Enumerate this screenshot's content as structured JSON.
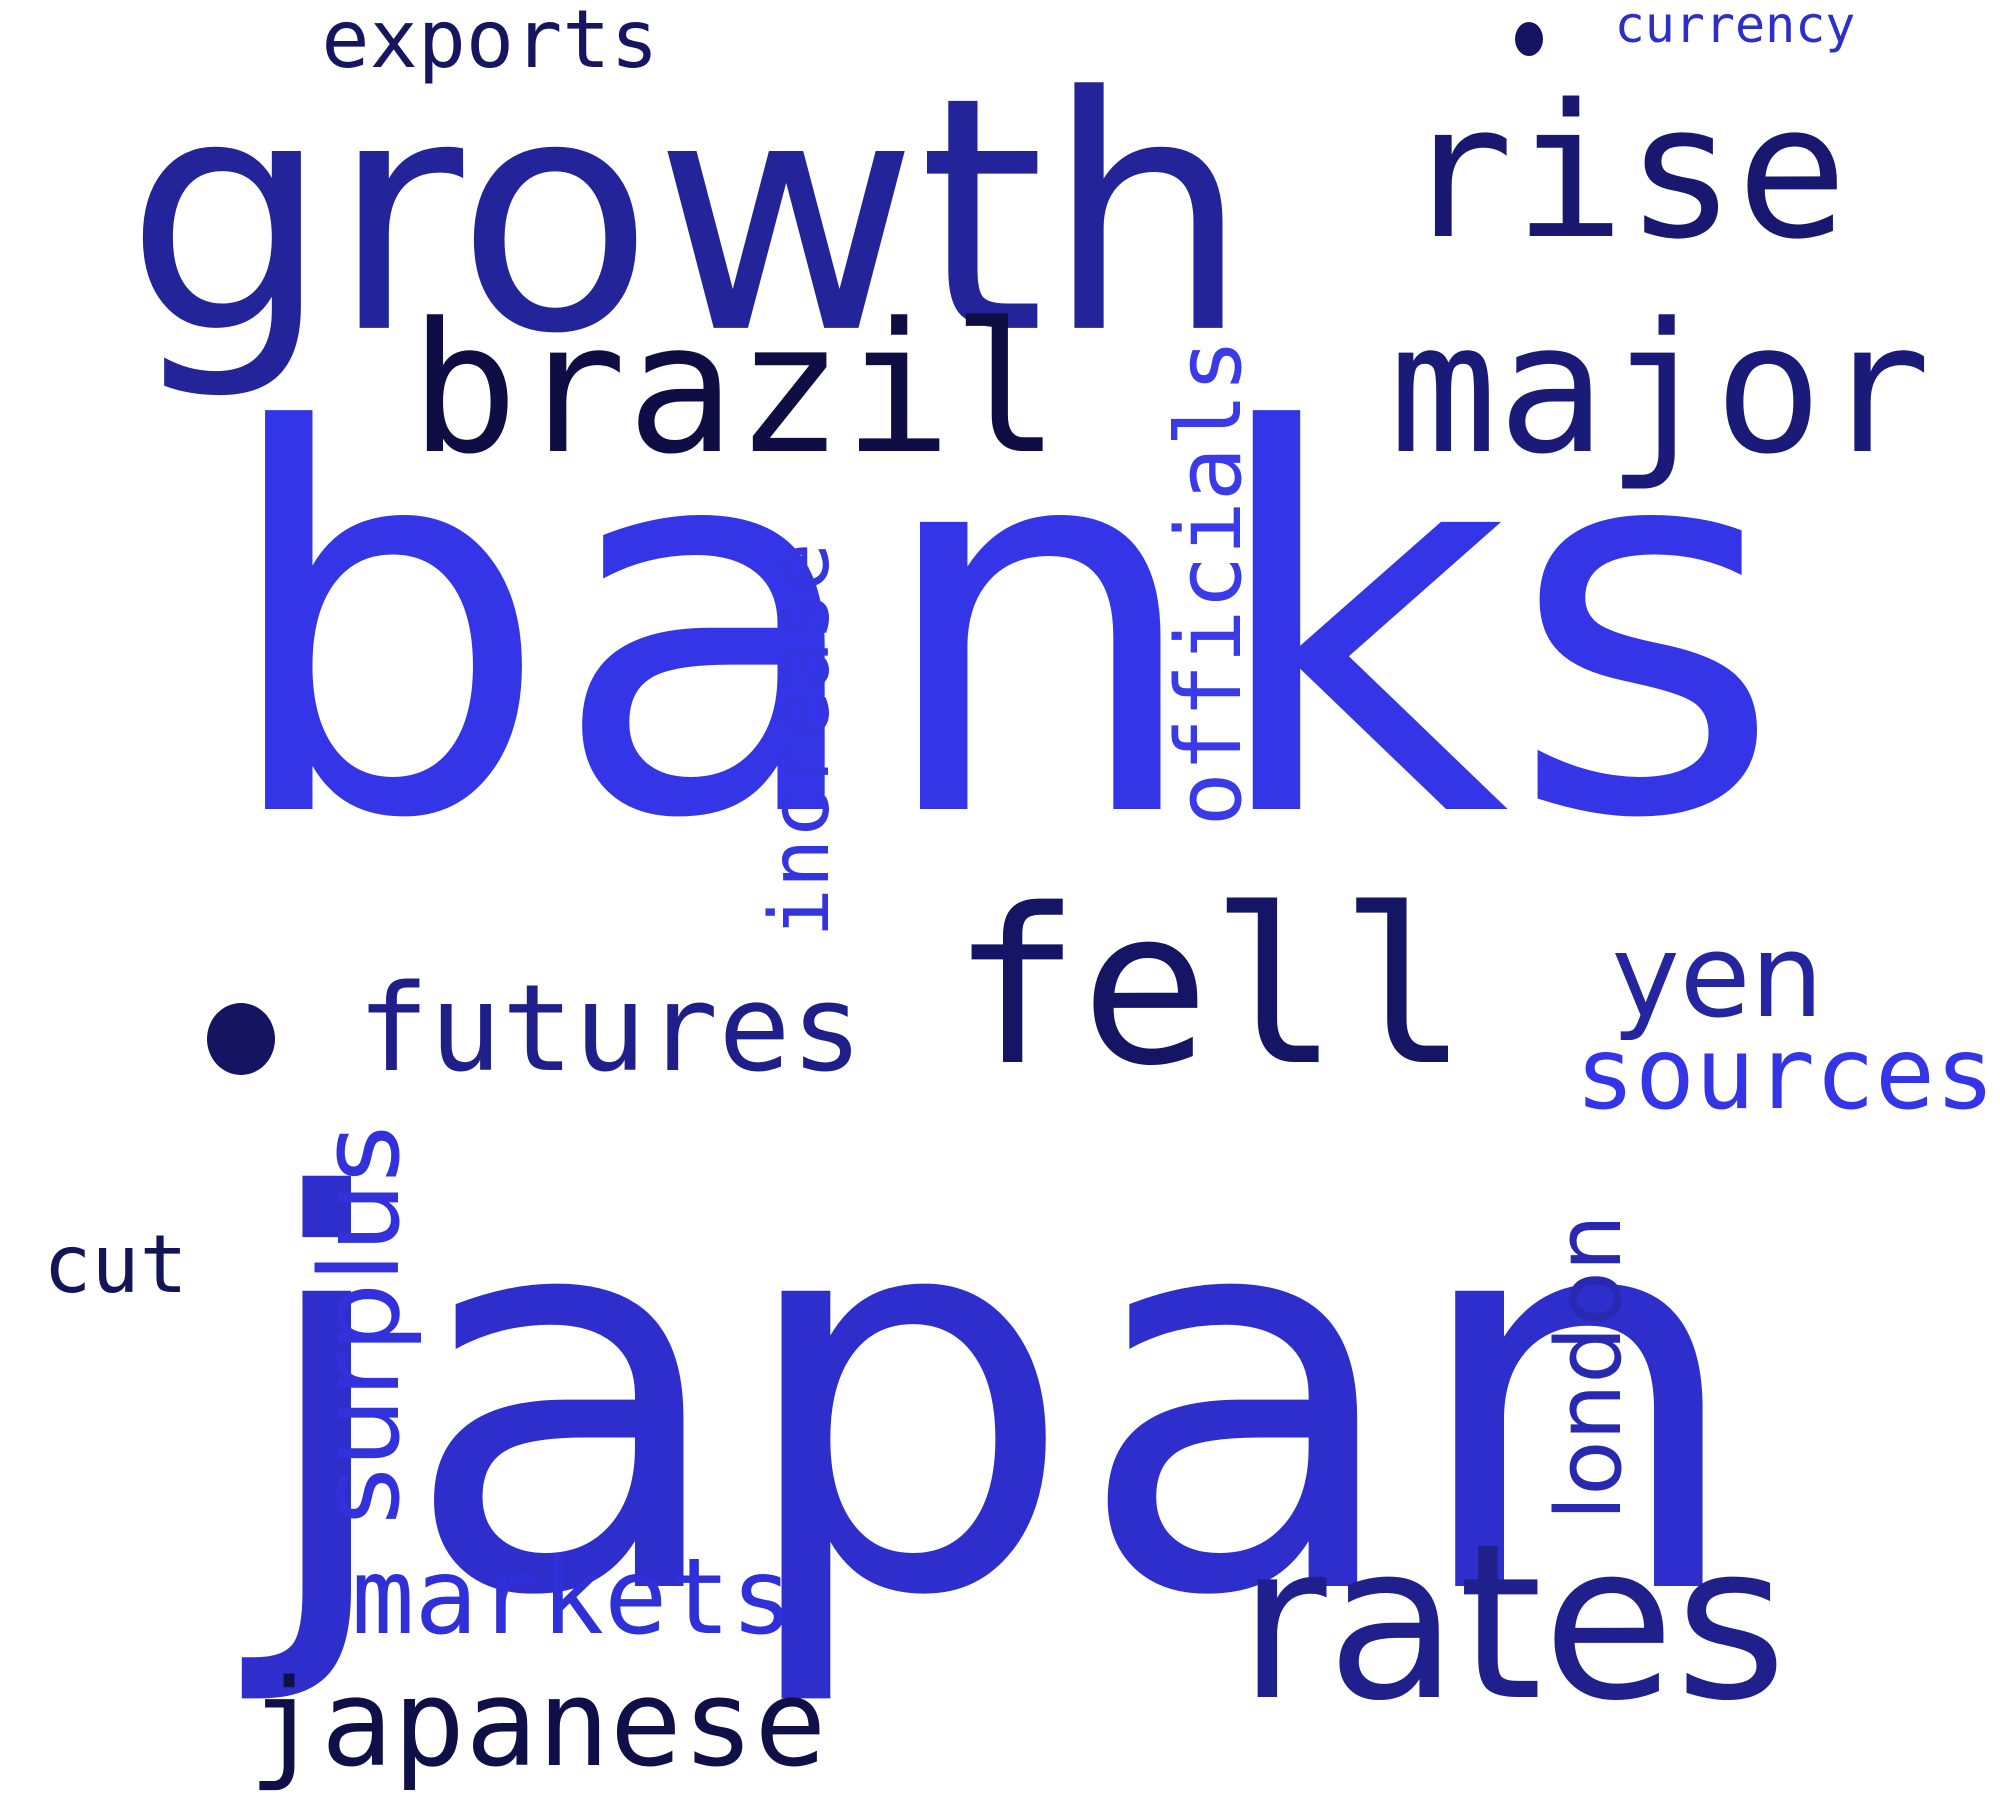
{
  "colors": {
    "background": "#ffffff",
    "bright_blue": "#3535e8",
    "royal_blue": "#2e2ecc",
    "indigo": "#23239a",
    "dark_navy": "#141460",
    "midnight": "#0e0e45"
  },
  "words": [
    {
      "text": "banks",
      "color": "#3535e8"
    },
    {
      "text": "japan",
      "color": "#2e2ecc"
    },
    {
      "text": "growth",
      "color": "#23239a"
    },
    {
      "text": "rise",
      "color": "#181870"
    },
    {
      "text": "rates",
      "color": "#20208c"
    },
    {
      "text": "fell",
      "color": "#151565"
    },
    {
      "text": "brazil",
      "color": "#0e0e45"
    },
    {
      "text": "major",
      "color": "#1a1a78"
    },
    {
      "text": "futures",
      "color": "#1f1f8a"
    },
    {
      "text": "exports",
      "color": "#161660"
    },
    {
      "text": "currency",
      "color": "#2e2ec8"
    },
    {
      "text": "increase",
      "color": "#3535e0"
    },
    {
      "text": "officials",
      "color": "#3a3ae8"
    },
    {
      "text": "yen",
      "color": "#2525a0"
    },
    {
      "text": "sources",
      "color": "#3535e8"
    },
    {
      "text": "surplus",
      "color": "#3232dd"
    },
    {
      "text": "london",
      "color": "#2828b0"
    },
    {
      "text": "cut",
      "color": "#141458"
    },
    {
      "text": "markets",
      "color": "#3030d8"
    },
    {
      "text": "japanese",
      "color": "#101048"
    }
  ]
}
